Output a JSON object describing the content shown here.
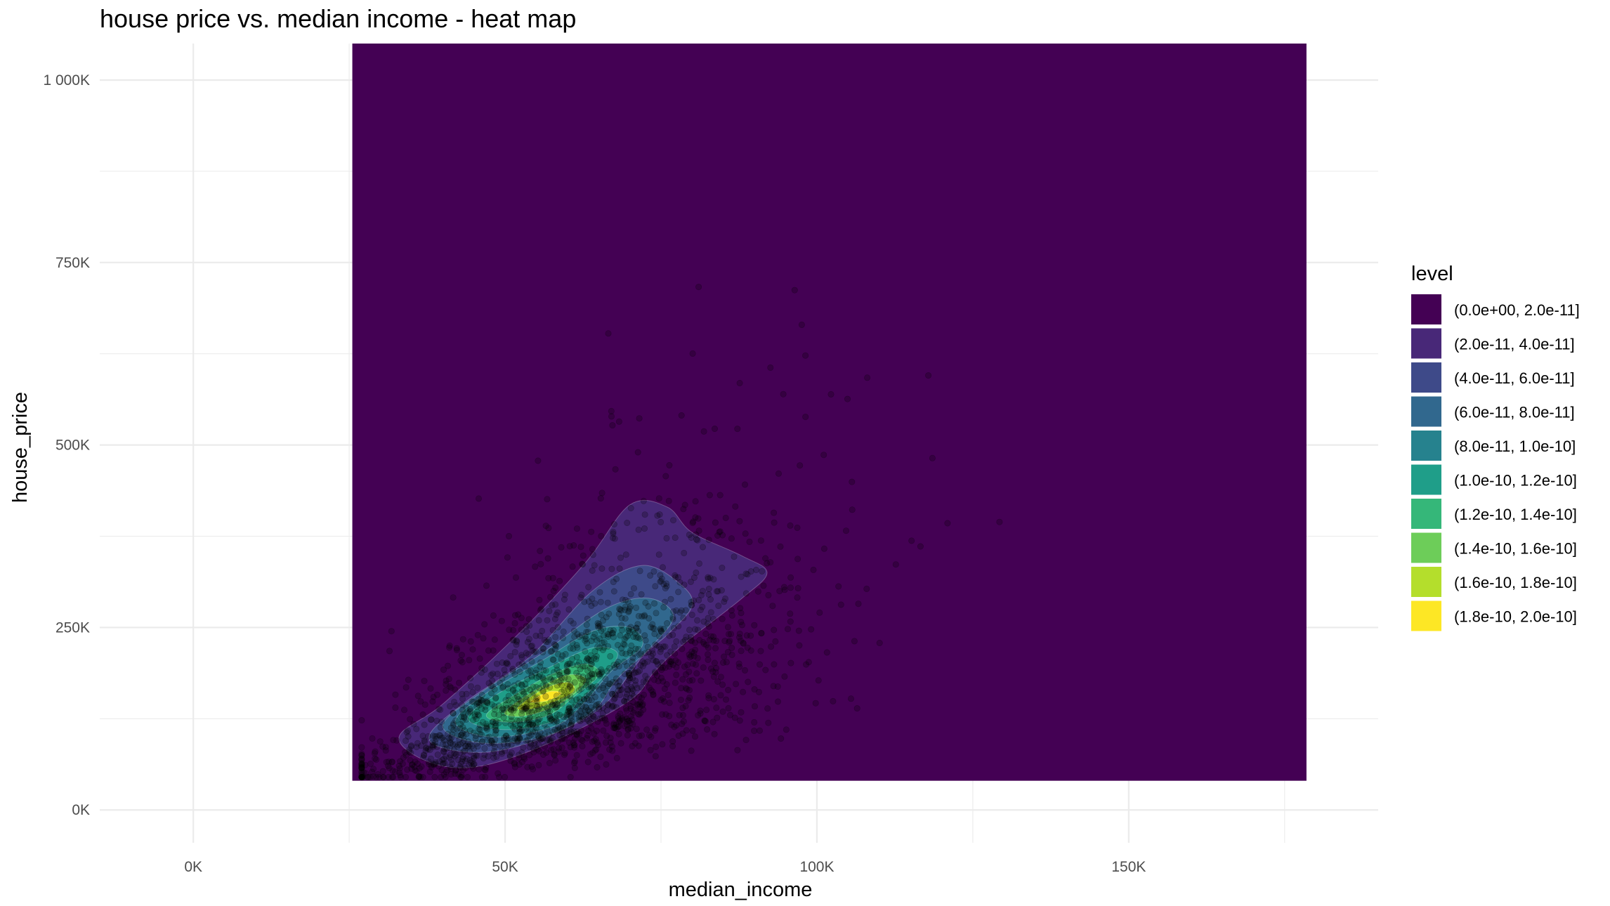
{
  "chart_data": {
    "type": "heatmap",
    "title": "house price vs. median income - heat map",
    "xlabel": "median_income",
    "ylabel": "house_price",
    "xlim": [
      -15000,
      190000
    ],
    "ylim": [
      -45000,
      1050000
    ],
    "x_ticks": [
      {
        "value": 0,
        "label": "0K"
      },
      {
        "value": 50000,
        "label": "50K"
      },
      {
        "value": 100000,
        "label": "100K"
      },
      {
        "value": 150000,
        "label": "150K"
      }
    ],
    "y_ticks": [
      {
        "value": 0,
        "label": "0K"
      },
      {
        "value": 250000,
        "label": "250K"
      },
      {
        "value": 500000,
        "label": "500K"
      },
      {
        "value": 750000,
        "label": "750K"
      },
      {
        "value": 1000000,
        "label": "1 000K"
      }
    ],
    "grid": true,
    "density_region": {
      "x": [
        25500,
        178500
      ],
      "y": [
        40000,
        1050000
      ]
    },
    "legend": {
      "title": "level",
      "position": "right",
      "levels": [
        {
          "label": "(0.0e+00, 2.0e-11]",
          "color": "#440154"
        },
        {
          "label": "(2.0e-11, 4.0e-11]",
          "color": "#482878"
        },
        {
          "label": "(4.0e-11, 6.0e-11]",
          "color": "#3E4A89"
        },
        {
          "label": "(6.0e-11, 8.0e-11]",
          "color": "#31688E"
        },
        {
          "label": "(8.0e-11, 1.0e-10]",
          "color": "#26828E"
        },
        {
          "label": "(1.0e-10, 1.2e-10]",
          "color": "#1F9E89"
        },
        {
          "label": "(1.2e-10, 1.4e-10]",
          "color": "#35B779"
        },
        {
          "label": "(1.4e-10, 1.6e-10]",
          "color": "#6DCD59"
        },
        {
          "label": "(1.6e-10, 1.8e-10]",
          "color": "#B4DE2C"
        },
        {
          "label": "(1.8e-10, 2.0e-10]",
          "color": "#FDE725"
        }
      ]
    },
    "contours": [
      {
        "level": 1,
        "points": [
          [
            33000,
            100000
          ],
          [
            40000,
            145000
          ],
          [
            52000,
            240000
          ],
          [
            63000,
            340000
          ],
          [
            70000,
            418000
          ],
          [
            76000,
            415000
          ],
          [
            80000,
            380000
          ],
          [
            88000,
            348000
          ],
          [
            92000,
            325000
          ],
          [
            88000,
            290000
          ],
          [
            79000,
            230000
          ],
          [
            74000,
            190000
          ],
          [
            70000,
            150000
          ],
          [
            58000,
            95000
          ],
          [
            46000,
            60000
          ],
          [
            38000,
            65000
          ],
          [
            33000,
            100000
          ]
        ]
      },
      {
        "level": 2,
        "points": [
          [
            38000,
            105000
          ],
          [
            44000,
            150000
          ],
          [
            54000,
            210000
          ],
          [
            64000,
            300000
          ],
          [
            72000,
            335000
          ],
          [
            78000,
            310000
          ],
          [
            80000,
            280000
          ],
          [
            76000,
            240000
          ],
          [
            72000,
            210000
          ],
          [
            66000,
            145000
          ],
          [
            58000,
            105000
          ],
          [
            48000,
            80000
          ],
          [
            40000,
            85000
          ],
          [
            38000,
            105000
          ]
        ]
      },
      {
        "level": 3,
        "points": [
          [
            40000,
            115000
          ],
          [
            46000,
            160000
          ],
          [
            56000,
            215000
          ],
          [
            66000,
            275000
          ],
          [
            73000,
            290000
          ],
          [
            77000,
            265000
          ],
          [
            73000,
            220000
          ],
          [
            68000,
            180000
          ],
          [
            64000,
            135000
          ],
          [
            56000,
            100000
          ],
          [
            46000,
            92000
          ],
          [
            40000,
            115000
          ]
        ]
      },
      {
        "level": 4,
        "points": [
          [
            42000,
            120000
          ],
          [
            47000,
            160000
          ],
          [
            56000,
            205000
          ],
          [
            64000,
            245000
          ],
          [
            70000,
            250000
          ],
          [
            72000,
            225000
          ],
          [
            67000,
            190000
          ],
          [
            63000,
            150000
          ],
          [
            58000,
            115000
          ],
          [
            48000,
            100000
          ],
          [
            42000,
            120000
          ]
        ]
      },
      {
        "level": 5,
        "points": [
          [
            44000,
            125000
          ],
          [
            49000,
            160000
          ],
          [
            57000,
            195000
          ],
          [
            64000,
            222000
          ],
          [
            68000,
            215000
          ],
          [
            66000,
            185000
          ],
          [
            62000,
            150000
          ],
          [
            58000,
            122000
          ],
          [
            50000,
            110000
          ],
          [
            44000,
            125000
          ]
        ]
      },
      {
        "level": 6,
        "points": [
          [
            47000,
            130000
          ],
          [
            52000,
            160000
          ],
          [
            58000,
            188000
          ],
          [
            63000,
            200000
          ],
          [
            65000,
            185000
          ],
          [
            61000,
            155000
          ],
          [
            57000,
            130000
          ],
          [
            51000,
            120000
          ],
          [
            47000,
            130000
          ]
        ]
      },
      {
        "level": 7,
        "points": [
          [
            50000,
            135000
          ],
          [
            55000,
            165000
          ],
          [
            60000,
            185000
          ],
          [
            63000,
            178000
          ],
          [
            60000,
            152000
          ],
          [
            56000,
            135000
          ],
          [
            52000,
            128000
          ],
          [
            50000,
            135000
          ]
        ]
      },
      {
        "level": 8,
        "points": [
          [
            52000,
            140000
          ],
          [
            56000,
            165000
          ],
          [
            60000,
            175000
          ],
          [
            61000,
            162000
          ],
          [
            57000,
            145000
          ],
          [
            54000,
            138000
          ],
          [
            52000,
            140000
          ]
        ]
      },
      {
        "level": 9,
        "points": [
          [
            54000,
            148000
          ],
          [
            57000,
            162000
          ],
          [
            59000,
            160000
          ],
          [
            57000,
            150000
          ],
          [
            54000,
            148000
          ]
        ]
      }
    ]
  }
}
